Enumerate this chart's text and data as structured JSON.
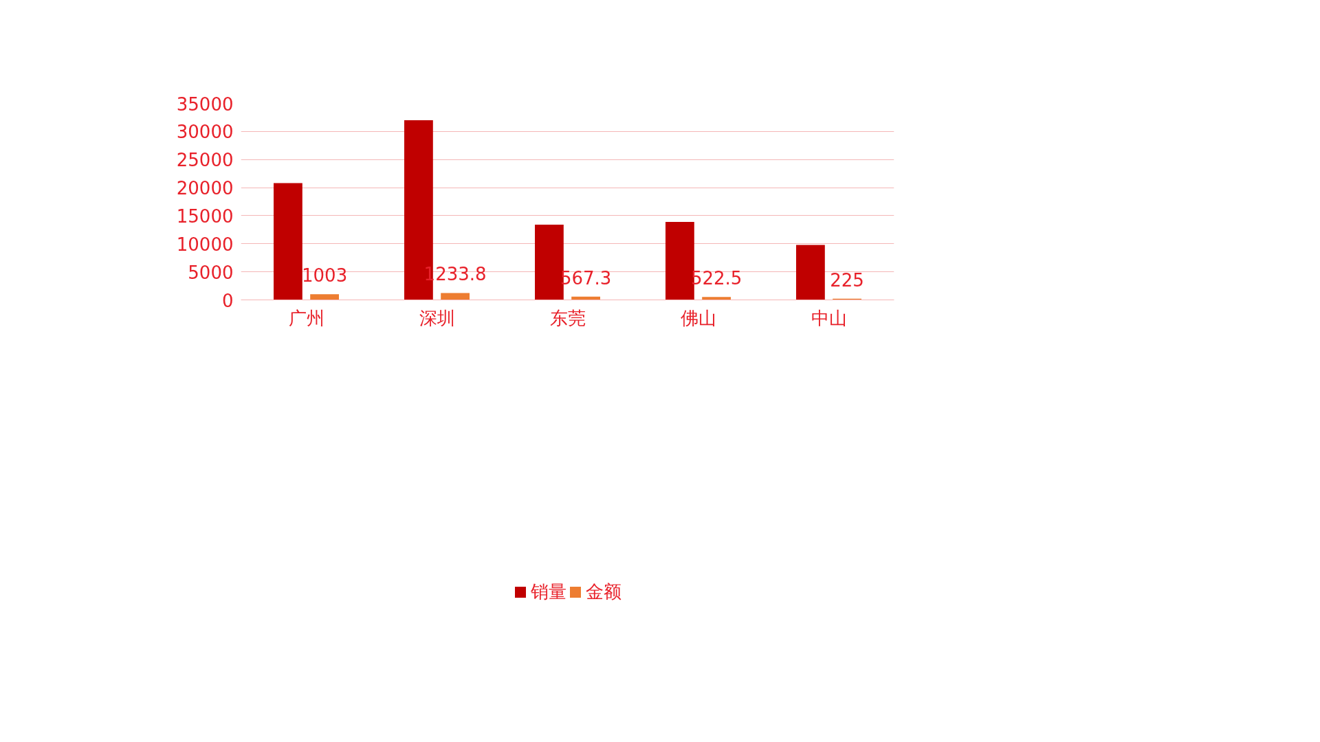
{
  "chart_data": {
    "type": "bar",
    "categories": [
      "广州",
      "深圳",
      "东莞",
      "佛山",
      "中山"
    ],
    "series": [
      {
        "name": "销量",
        "color": "#c00000",
        "values": [
          20800,
          32000,
          13400,
          13900,
          9800
        ]
      },
      {
        "name": "金额",
        "color": "#ed7d31",
        "values": [
          1003,
          1233.8,
          567.3,
          522.5,
          225
        ],
        "value_labels": [
          "1003",
          "1233.8",
          "567.3",
          "522.5",
          "225"
        ]
      }
    ],
    "ylim": [
      0,
      35000
    ],
    "yticks": [
      0,
      5000,
      10000,
      15000,
      20000,
      25000,
      30000,
      35000
    ],
    "grid": "y",
    "legend": "bottom"
  }
}
